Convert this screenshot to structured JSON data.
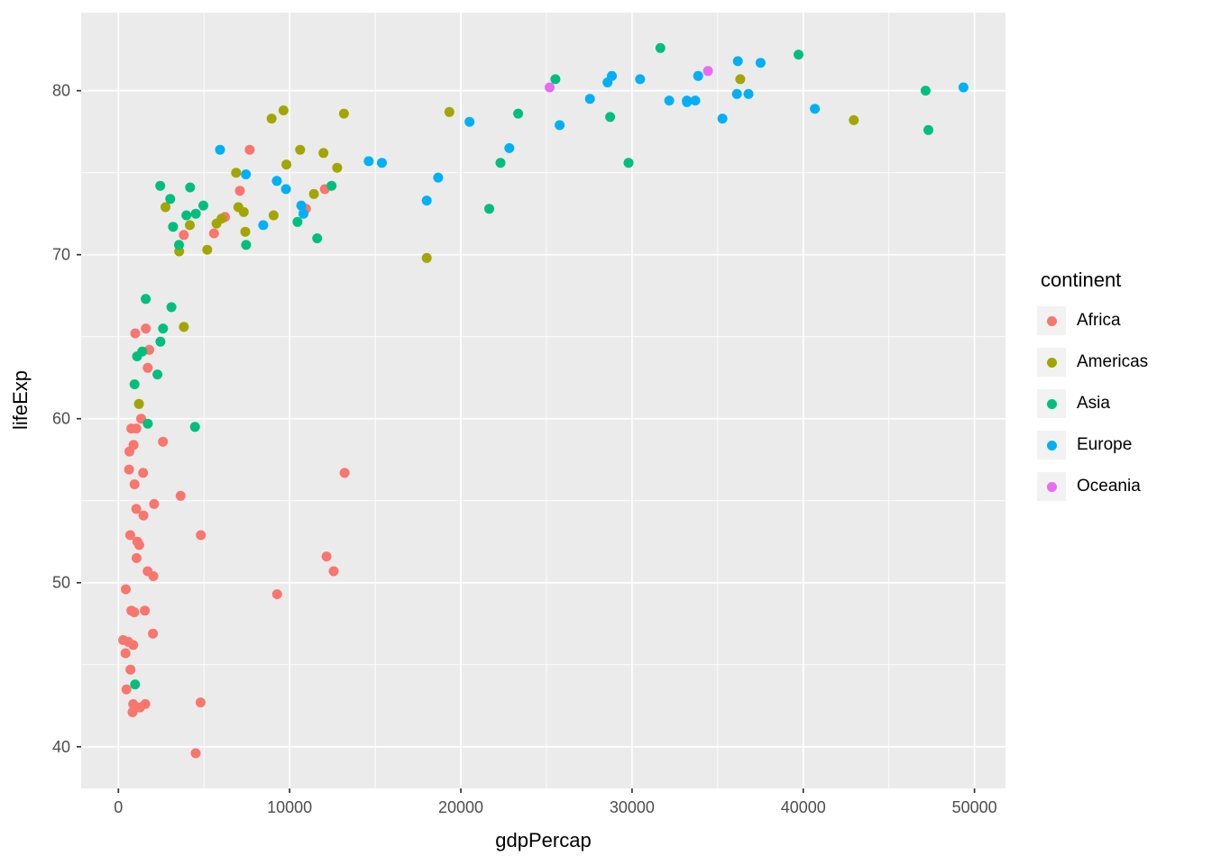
{
  "chart_data": {
    "type": "scatter",
    "title": "",
    "xlabel": "gdpPercap",
    "ylabel": "lifeExp",
    "xlim": [
      -2176,
      51811
    ],
    "ylim": [
      37.46,
      84.76
    ],
    "x_ticks": [
      0,
      10000,
      20000,
      30000,
      40000,
      50000
    ],
    "y_ticks": [
      40,
      50,
      60,
      70,
      80
    ],
    "x_minor": [
      5000,
      15000,
      25000,
      35000,
      45000
    ],
    "y_minor": [
      45,
      55,
      65,
      75
    ],
    "grid": true,
    "legend_title": "continent",
    "legend_position": "right",
    "panel_bg": "#EBEBEB",
    "gridline_color": "#FFFFFF",
    "tick_label_color": "#4D4D4D",
    "tick_mark_color": "#333333",
    "series": [
      {
        "name": "Africa",
        "color": "#F8766D",
        "points": [
          [
            6223.4,
            72.3
          ],
          [
            4797.2,
            42.7
          ],
          [
            1441.3,
            56.7
          ],
          [
            12569.9,
            50.7
          ],
          [
            1217.0,
            52.3
          ],
          [
            430.1,
            49.6
          ],
          [
            2042.1,
            50.4
          ],
          [
            706.0,
            44.7
          ],
          [
            1704.1,
            50.7
          ],
          [
            986.1,
            65.2
          ],
          [
            277.6,
            46.5
          ],
          [
            3632.6,
            55.3
          ],
          [
            1544.8,
            48.3
          ],
          [
            2082.5,
            54.8
          ],
          [
            5581.2,
            71.3
          ],
          [
            12154.1,
            51.6
          ],
          [
            641.4,
            58.0
          ],
          [
            690.8,
            52.9
          ],
          [
            13206.5,
            56.7
          ],
          [
            752.7,
            59.4
          ],
          [
            1327.6,
            60.0
          ],
          [
            942.7,
            56.0
          ],
          [
            579.2,
            46.4
          ],
          [
            1463.2,
            54.1
          ],
          [
            1569.3,
            42.6
          ],
          [
            414.5,
            45.7
          ],
          [
            12057.3,
            74.0
          ],
          [
            1044.8,
            59.4
          ],
          [
            759.3,
            48.3
          ],
          [
            1042.6,
            54.5
          ],
          [
            1803.2,
            64.2
          ],
          [
            10957.0,
            72.8
          ],
          [
            3820.2,
            71.2
          ],
          [
            823.7,
            42.1
          ],
          [
            4811.1,
            52.9
          ],
          [
            619.7,
            56.9
          ],
          [
            2014.0,
            46.9
          ],
          [
            7670.1,
            76.4
          ],
          [
            863.1,
            46.2
          ],
          [
            1598.4,
            65.5
          ],
          [
            1712.5,
            63.1
          ],
          [
            862.5,
            42.6
          ],
          [
            926.1,
            48.2
          ],
          [
            9269.7,
            49.3
          ],
          [
            2602.4,
            58.6
          ],
          [
            4513.5,
            39.6
          ],
          [
            1107.5,
            52.5
          ],
          [
            883.0,
            58.4
          ],
          [
            7092.9,
            73.9
          ],
          [
            1056.4,
            51.5
          ],
          [
            1271.2,
            42.4
          ],
          [
            469.7,
            43.5
          ]
        ]
      },
      {
        "name": "Americas",
        "color": "#A3A500",
        "points": [
          [
            12779.4,
            75.3
          ],
          [
            3822.1,
            65.6
          ],
          [
            9065.8,
            72.4
          ],
          [
            36319.2,
            80.7
          ],
          [
            13171.6,
            78.6
          ],
          [
            7006.6,
            72.9
          ],
          [
            9645.1,
            78.8
          ],
          [
            8948.1,
            78.3
          ],
          [
            6025.4,
            72.2
          ],
          [
            6873.3,
            75.0
          ],
          [
            5728.4,
            71.9
          ],
          [
            5186.1,
            70.3
          ],
          [
            1201.6,
            60.9
          ],
          [
            3548.3,
            70.2
          ],
          [
            7320.9,
            72.6
          ],
          [
            11977.6,
            76.2
          ],
          [
            2749.3,
            72.9
          ],
          [
            9809.2,
            75.5
          ],
          [
            4172.8,
            71.8
          ],
          [
            7408.9,
            71.4
          ],
          [
            19328.7,
            78.7
          ],
          [
            18008.5,
            69.8
          ],
          [
            42951.7,
            78.2
          ],
          [
            10611.5,
            76.4
          ],
          [
            11415.8,
            73.7
          ]
        ]
      },
      {
        "name": "Asia",
        "color": "#00BF7D",
        "points": [
          [
            974.6,
            43.8
          ],
          [
            29796.0,
            75.6
          ],
          [
            1391.3,
            64.1
          ],
          [
            1713.8,
            59.7
          ],
          [
            4959.1,
            73.0
          ],
          [
            39725.0,
            82.2
          ],
          [
            2452.2,
            64.7
          ],
          [
            3540.7,
            70.6
          ],
          [
            11605.7,
            71.0
          ],
          [
            4471.1,
            59.5
          ],
          [
            25523.3,
            80.7
          ],
          [
            31656.1,
            82.6
          ],
          [
            4519.5,
            72.5
          ],
          [
            1593.1,
            67.3
          ],
          [
            23348.1,
            78.6
          ],
          [
            47307.0,
            77.6
          ],
          [
            10461.1,
            72.0
          ],
          [
            12451.7,
            74.2
          ],
          [
            3095.8,
            66.8
          ],
          [
            944.0,
            62.1
          ],
          [
            1091.4,
            63.8
          ],
          [
            22316.2,
            75.6
          ],
          [
            2606.0,
            65.5
          ],
          [
            3190.5,
            71.7
          ],
          [
            21654.8,
            72.8
          ],
          [
            47143.2,
            80.0
          ],
          [
            3970.1,
            72.4
          ],
          [
            4184.6,
            74.1
          ],
          [
            28718.3,
            78.4
          ],
          [
            7458.4,
            70.6
          ],
          [
            2441.6,
            74.2
          ],
          [
            3025.3,
            73.4
          ],
          [
            2280.8,
            62.7
          ]
        ]
      },
      {
        "name": "Europe",
        "color": "#00B0F6",
        "points": [
          [
            5937.0,
            76.4
          ],
          [
            36126.5,
            79.8
          ],
          [
            33692.6,
            79.4
          ],
          [
            7446.3,
            74.9
          ],
          [
            10680.8,
            73.0
          ],
          [
            14619.2,
            75.7
          ],
          [
            22833.3,
            76.5
          ],
          [
            35278.4,
            78.3
          ],
          [
            33207.1,
            79.3
          ],
          [
            30470.0,
            80.7
          ],
          [
            32170.4,
            79.4
          ],
          [
            27538.4,
            79.5
          ],
          [
            18008.9,
            73.3
          ],
          [
            36180.8,
            81.8
          ],
          [
            40676.0,
            78.9
          ],
          [
            28569.7,
            80.5
          ],
          [
            9253.9,
            74.5
          ],
          [
            36797.9,
            79.8
          ],
          [
            49357.2,
            80.2
          ],
          [
            15389.9,
            75.6
          ],
          [
            20509.6,
            78.1
          ],
          [
            10808.5,
            72.5
          ],
          [
            9786.5,
            74.0
          ],
          [
            18678.3,
            74.7
          ],
          [
            25768.3,
            77.9
          ],
          [
            28821.1,
            80.9
          ],
          [
            33859.7,
            80.9
          ],
          [
            37506.4,
            81.7
          ],
          [
            8458.3,
            71.8
          ],
          [
            33203.3,
            79.4
          ]
        ]
      },
      {
        "name": "Oceania",
        "color": "#E76BF3",
        "points": [
          [
            34435.4,
            81.2
          ],
          [
            25185.0,
            80.2
          ]
        ]
      }
    ]
  }
}
